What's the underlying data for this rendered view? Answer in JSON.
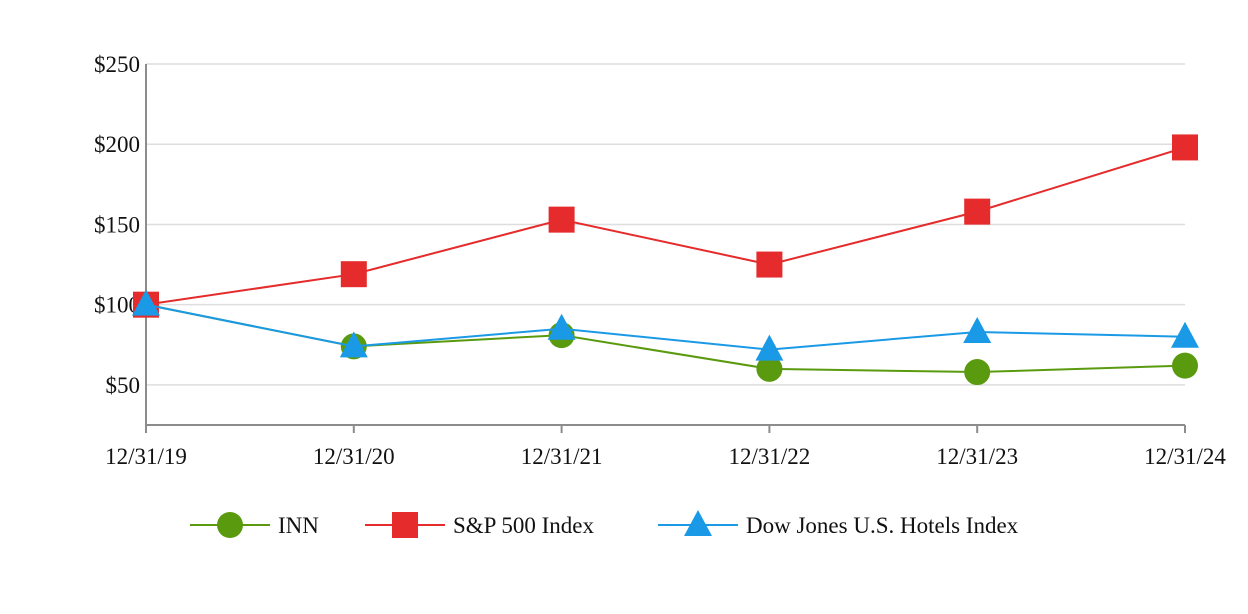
{
  "chart_data": {
    "type": "line",
    "categories": [
      "12/31/19",
      "12/31/20",
      "12/31/21",
      "12/31/22",
      "12/31/23",
      "12/31/24"
    ],
    "y_tick_labels": [
      "$50",
      "$100",
      "$150",
      "$200",
      "$250"
    ],
    "y_ticks": [
      50,
      100,
      150,
      200,
      250
    ],
    "ylim": [
      25,
      250
    ],
    "grid": true,
    "legend_position": "bottom",
    "series": [
      {
        "name": "INN",
        "marker": "circle",
        "color": "#5a9a0f",
        "values": [
          100,
          74,
          81,
          60,
          58,
          62
        ]
      },
      {
        "name": "S&P 500 Index",
        "marker": "square",
        "color": "#e52b2b",
        "values": [
          100,
          119,
          153,
          125,
          158,
          198
        ]
      },
      {
        "name": "Dow Jones U.S. Hotels Index",
        "marker": "triangle",
        "color": "#1a9ae6",
        "values": [
          100,
          74,
          85,
          72,
          83,
          80
        ]
      }
    ]
  }
}
